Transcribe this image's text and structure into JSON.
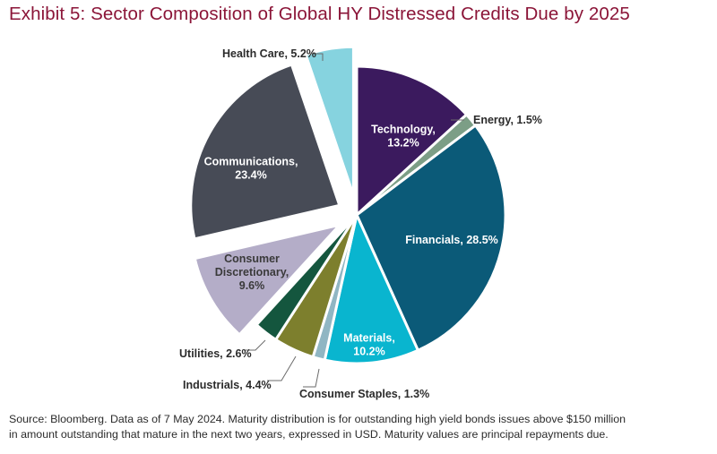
{
  "title": "Exhibit 5: Sector Composition of Global HY Distressed Credits Due by 2025",
  "footnote": {
    "line1": "Source: Bloomberg. Data as of 7 May 2024. Maturity distribution is for outstanding high yield bonds issues above $150 million",
    "line2": "in amount outstanding that mature in the next two years, expressed in USD. Maturity values are principal repayments due."
  },
  "chart_data": {
    "type": "pie",
    "unit": "%",
    "slices": [
      {
        "label": "Technology",
        "display": [
          "Technology,",
          "13.2%"
        ],
        "value": 13.2,
        "color": "#3b1a5e",
        "text_color": "#ffffff",
        "exploded": false,
        "label_inside": true
      },
      {
        "label": "Energy",
        "display": [
          "Energy, 1.5%"
        ],
        "value": 1.5,
        "color": "#7c9e86",
        "text_color": "#2b2b2b",
        "exploded": false,
        "label_inside": false
      },
      {
        "label": "Financials",
        "display": [
          "Financials, 28.5%"
        ],
        "value": 28.5,
        "color": "#0b5a78",
        "text_color": "#ffffff",
        "exploded": false,
        "label_inside": true
      },
      {
        "label": "Materials",
        "display": [
          "Materials,",
          "10.2%"
        ],
        "value": 10.2,
        "color": "#09b5cf",
        "text_color": "#ffffff",
        "exploded": false,
        "label_inside": true
      },
      {
        "label": "Consumer Staples",
        "display": [
          "Consumer Staples, 1.3%"
        ],
        "value": 1.3,
        "color": "#90b6c3",
        "text_color": "#2b2b2b",
        "exploded": false,
        "label_inside": false
      },
      {
        "label": "Industrials",
        "display": [
          "Industrials, 4.4%"
        ],
        "value": 4.4,
        "color": "#7d7f2d",
        "text_color": "#2b2b2b",
        "exploded": false,
        "label_inside": false
      },
      {
        "label": "Utilities",
        "display": [
          "Utilities, 2.6%"
        ],
        "value": 2.6,
        "color": "#14563e",
        "text_color": "#2b2b2b",
        "exploded": false,
        "label_inside": false
      },
      {
        "label": "Consumer Discretionary",
        "display": [
          "Consumer",
          "Discretionary,",
          "9.6%"
        ],
        "value": 9.6,
        "color": "#b4adc8",
        "text_color": "#3a3a3a",
        "exploded": true,
        "label_inside": true
      },
      {
        "label": "Communications",
        "display": [
          "Communications,",
          "23.4%"
        ],
        "value": 23.4,
        "color": "#474b56",
        "text_color": "#ffffff",
        "exploded": true,
        "label_inside": true
      },
      {
        "label": "Health Care",
        "display": [
          "Health Care, 5.2%"
        ],
        "value": 5.2,
        "color": "#86d3df",
        "text_color": "#2b2b2b",
        "exploded": true,
        "label_inside": false
      }
    ]
  }
}
